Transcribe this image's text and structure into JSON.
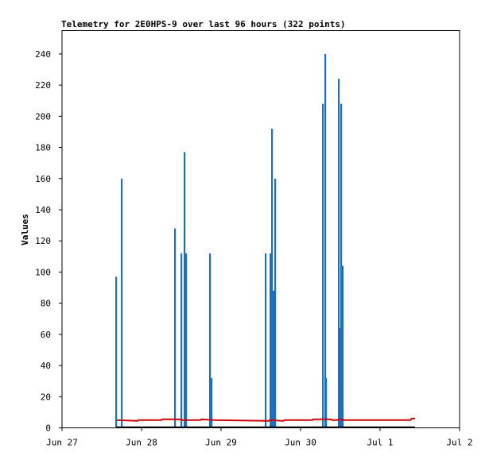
{
  "chart_data": {
    "type": "bar",
    "title": "Telemetry for 2E0HPS-9 over last 96 hours (322 points)",
    "xlabel": "",
    "ylabel": "Values",
    "x_range": [
      "Jun 27",
      "Jul 2"
    ],
    "x_ticks": [
      {
        "day": 0,
        "label": "Jun 27"
      },
      {
        "day": 1,
        "label": "Jun 28"
      },
      {
        "day": 2,
        "label": "Jun 29"
      },
      {
        "day": 3,
        "label": "Jun 30"
      },
      {
        "day": 4,
        "label": "Jul 1"
      },
      {
        "day": 5,
        "label": "Jul 2"
      }
    ],
    "ylim": [
      0,
      255
    ],
    "y_ticks": [
      0,
      20,
      40,
      60,
      80,
      100,
      120,
      140,
      160,
      180,
      200,
      220,
      240
    ],
    "grid": false,
    "legend": "none",
    "series": [
      {
        "kind": "impulse",
        "color": "#1f6fbf",
        "points": [
          {
            "day": 0.68,
            "value": 97
          },
          {
            "day": 0.75,
            "value": 160
          },
          {
            "day": 1.42,
            "value": 128
          },
          {
            "day": 1.5,
            "value": 112
          },
          {
            "day": 1.54,
            "value": 177
          },
          {
            "day": 1.56,
            "value": 112
          },
          {
            "day": 1.86,
            "value": 112
          },
          {
            "day": 1.88,
            "value": 32
          },
          {
            "day": 2.56,
            "value": 112
          },
          {
            "day": 2.62,
            "value": 112
          },
          {
            "day": 2.64,
            "value": 192
          },
          {
            "day": 2.66,
            "value": 88
          },
          {
            "day": 2.68,
            "value": 160
          },
          {
            "day": 3.28,
            "value": 208
          },
          {
            "day": 3.31,
            "value": 240
          },
          {
            "day": 3.32,
            "value": 32
          },
          {
            "day": 3.48,
            "value": 224
          },
          {
            "day": 3.5,
            "value": 64
          },
          {
            "day": 3.51,
            "value": 208
          },
          {
            "day": 3.53,
            "value": 104
          }
        ]
      },
      {
        "kind": "step-line",
        "color": "#cc0000",
        "points": [
          {
            "day": 0.69,
            "value": 5
          },
          {
            "day": 0.95,
            "value": 4.5
          },
          {
            "day": 0.96,
            "value": 5
          },
          {
            "day": 1.25,
            "value": 5
          },
          {
            "day": 1.26,
            "value": 5.5
          },
          {
            "day": 1.48,
            "value": 5.5
          },
          {
            "day": 1.5,
            "value": 5
          },
          {
            "day": 1.74,
            "value": 5
          },
          {
            "day": 1.76,
            "value": 5.5
          },
          {
            "day": 1.92,
            "value": 5
          },
          {
            "day": 2.6,
            "value": 4.5
          },
          {
            "day": 2.62,
            "value": 5
          },
          {
            "day": 2.78,
            "value": 4.5
          },
          {
            "day": 2.8,
            "value": 5
          },
          {
            "day": 3.15,
            "value": 5
          },
          {
            "day": 3.16,
            "value": 5.5
          },
          {
            "day": 3.38,
            "value": 5.5
          },
          {
            "day": 3.4,
            "value": 5
          },
          {
            "day": 3.46,
            "value": 5
          },
          {
            "day": 3.48,
            "value": 5.5
          },
          {
            "day": 3.55,
            "value": 5
          },
          {
            "day": 4.38,
            "value": 5
          },
          {
            "day": 4.4,
            "value": 6
          },
          {
            "day": 4.44,
            "value": 6
          }
        ]
      },
      {
        "kind": "line",
        "color": "#000000",
        "points": [
          {
            "day": 0.68,
            "value": 0.5
          },
          {
            "day": 4.44,
            "value": 0.5
          }
        ]
      }
    ]
  }
}
